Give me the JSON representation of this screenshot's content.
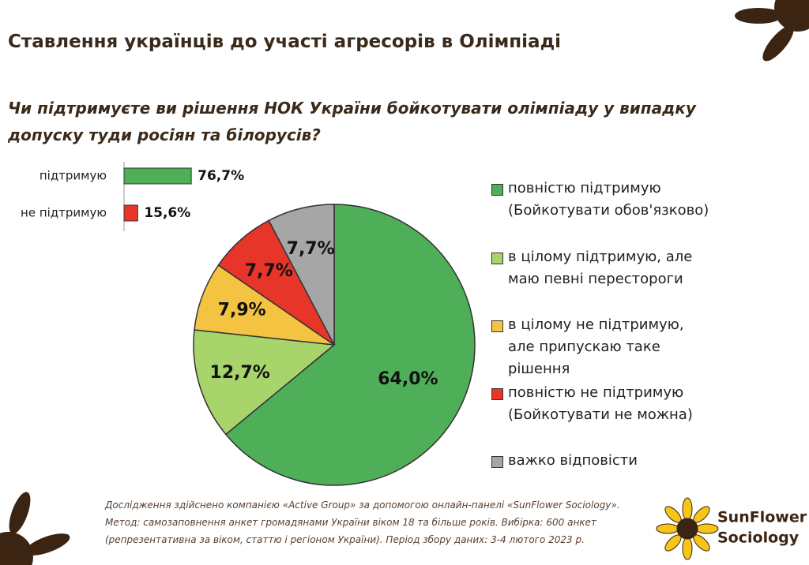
{
  "title": "Ставлення українців до участі агресорів в Олімпіаді",
  "subtitle": "Чи підтримуєте ви рішення НОК України бойкотувати олімпіаду у випадку\nдопуску туди росіян та білорусів?",
  "chart_data": [
    {
      "type": "bar",
      "orientation": "horizontal",
      "categories": [
        "підтримую",
        "не підтримую"
      ],
      "values": [
        76.7,
        15.6
      ],
      "value_labels": [
        "76,7%",
        "15,6%"
      ],
      "colors": [
        "#4fae58",
        "#e8352a"
      ]
    },
    {
      "type": "pie",
      "categories": [
        "повністю підтримую\n(Бойкотувати обов'язково)",
        "в цілому підтримую, але\nмаю певні перестороги",
        "в цілому не підтримую,\nале припускаю таке\nрішення",
        "повністю не підтримую\n(Бойкотувати не можна)",
        "важко відповісти"
      ],
      "values": [
        64.0,
        12.7,
        7.9,
        7.7,
        7.7
      ],
      "value_labels": [
        "64,0%",
        "12,7%",
        "7,9%",
        "7,7%",
        "7,7%"
      ],
      "colors": [
        "#4fae58",
        "#a8d46c",
        "#f5c342",
        "#e8352a",
        "#a6a6a6"
      ]
    }
  ],
  "footnote": [
    "Дослідження здійснено компанією «Active Group» за допомогою онлайн-панелі «SunFlower Sociology».",
    "Метод: самозаповнення анкет громадянами України віком 18 та більше років. Вибірка: 600 анкет",
    "(репрезентативна за віком, статтю і регіоном України). Період збору даних: 3-4 лютого 2023 р."
  ],
  "logo": [
    "SunFlower",
    "Sociology"
  ]
}
